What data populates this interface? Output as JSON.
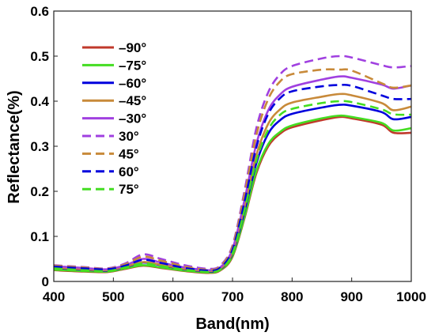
{
  "chart_data": {
    "type": "line",
    "title": "",
    "xlabel": "Band(nm)",
    "ylabel": "Reflectance(%)",
    "xlim": [
      400,
      1000
    ],
    "ylim": [
      0,
      0.6
    ],
    "xticks": [
      "400",
      "500",
      "600",
      "700",
      "800",
      "900",
      "1000"
    ],
    "yticks": [
      "0",
      "0.1",
      "0.2",
      "0.3",
      "0.4",
      "0.5",
      "0.6"
    ],
    "x": [
      400,
      450,
      490,
      520,
      550,
      580,
      620,
      660,
      680,
      700,
      720,
      740,
      760,
      780,
      800,
      850,
      880,
      900,
      950,
      970,
      1000
    ],
    "legend_position": "top-left",
    "grid": false,
    "series": [
      {
        "name": "–90°",
        "color": "#c0392b",
        "dash": "solid",
        "values": [
          0.025,
          0.022,
          0.021,
          0.028,
          0.035,
          0.03,
          0.023,
          0.019,
          0.025,
          0.055,
          0.14,
          0.24,
          0.3,
          0.328,
          0.342,
          0.358,
          0.365,
          0.362,
          0.348,
          0.33,
          0.33
        ]
      },
      {
        "name": "–75°",
        "color": "#44dd22",
        "dash": "solid",
        "values": [
          0.026,
          0.023,
          0.022,
          0.029,
          0.036,
          0.031,
          0.024,
          0.02,
          0.026,
          0.057,
          0.143,
          0.245,
          0.305,
          0.332,
          0.346,
          0.362,
          0.368,
          0.365,
          0.352,
          0.335,
          0.34
        ]
      },
      {
        "name": "–60°",
        "color": "#0000dd",
        "dash": "solid",
        "values": [
          0.03,
          0.026,
          0.024,
          0.032,
          0.042,
          0.036,
          0.027,
          0.022,
          0.028,
          0.062,
          0.155,
          0.262,
          0.328,
          0.358,
          0.372,
          0.386,
          0.392,
          0.39,
          0.376,
          0.36,
          0.365
        ]
      },
      {
        "name": "–45°",
        "color": "#c88a3a",
        "dash": "solid",
        "values": [
          0.031,
          0.027,
          0.025,
          0.033,
          0.043,
          0.037,
          0.028,
          0.023,
          0.029,
          0.065,
          0.165,
          0.28,
          0.35,
          0.382,
          0.397,
          0.41,
          0.416,
          0.413,
          0.396,
          0.38,
          0.388
        ]
      },
      {
        "name": "–30°",
        "color": "#a040e0",
        "dash": "solid",
        "values": [
          0.034,
          0.03,
          0.027,
          0.036,
          0.05,
          0.042,
          0.031,
          0.025,
          0.032,
          0.072,
          0.18,
          0.305,
          0.38,
          0.415,
          0.432,
          0.448,
          0.455,
          0.452,
          0.437,
          0.428,
          0.435
        ]
      },
      {
        "name": "30°",
        "color": "#a040e0",
        "dash": "dashed",
        "values": [
          0.036,
          0.032,
          0.029,
          0.04,
          0.06,
          0.05,
          0.036,
          0.028,
          0.036,
          0.08,
          0.2,
          0.34,
          0.42,
          0.46,
          0.478,
          0.495,
          0.5,
          0.497,
          0.48,
          0.475,
          0.478
        ]
      },
      {
        "name": "45°",
        "color": "#c88a3a",
        "dash": "dashed",
        "values": [
          0.035,
          0.031,
          0.028,
          0.038,
          0.055,
          0.046,
          0.033,
          0.026,
          0.034,
          0.077,
          0.192,
          0.325,
          0.405,
          0.444,
          0.46,
          0.47,
          0.47,
          0.468,
          0.44,
          0.43,
          0.435
        ]
      },
      {
        "name": "60°",
        "color": "#0000dd",
        "dash": "dashed",
        "values": [
          0.033,
          0.029,
          0.027,
          0.035,
          0.048,
          0.041,
          0.03,
          0.024,
          0.031,
          0.07,
          0.176,
          0.298,
          0.372,
          0.407,
          0.422,
          0.433,
          0.436,
          0.434,
          0.413,
          0.405,
          0.405
        ]
      },
      {
        "name": "75°",
        "color": "#44dd22",
        "dash": "dashed",
        "values": [
          0.029,
          0.025,
          0.023,
          0.031,
          0.04,
          0.034,
          0.026,
          0.021,
          0.027,
          0.062,
          0.158,
          0.268,
          0.337,
          0.37,
          0.383,
          0.396,
          0.4,
          0.398,
          0.382,
          0.371,
          0.37
        ]
      }
    ]
  }
}
